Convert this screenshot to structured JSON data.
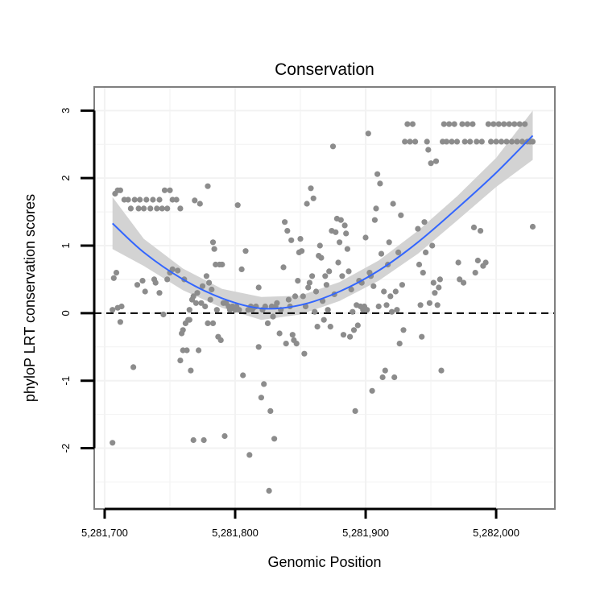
{
  "chart_data": {
    "type": "scatter",
    "title": "Conservation",
    "xlabel": "Genomic Position",
    "ylabel": "phyloP LRT conservation scores",
    "xlim": [
      5281692,
      5282045
    ],
    "ylim": [
      -2.9,
      3.35
    ],
    "x_ticks": [
      5281700,
      5281800,
      5281900,
      5282000
    ],
    "x_tick_labels": [
      "5,281,700",
      "5,281,800",
      "5,281,900",
      "5,282,000"
    ],
    "y_ticks": [
      -2,
      -1,
      0,
      1,
      2,
      3
    ],
    "y_tick_labels": [
      "-2",
      "-1",
      "0",
      "1",
      "2",
      "3"
    ],
    "reference_line": {
      "y": 0,
      "style": "dashed",
      "color": "#000000"
    },
    "grid": true,
    "colors": {
      "points": "#8c8c8c",
      "fit": "#3366ff",
      "band": "#d3d3d3",
      "grid": "#f2f2f2",
      "panel_border": "#7f7f7f"
    },
    "fit": {
      "type": "loess",
      "x": [
        5281706,
        5281730,
        5281760,
        5281790,
        5281820,
        5281850,
        5281880,
        5281910,
        5281940,
        5281970,
        5282000,
        5282028
      ],
      "y": [
        1.33,
        0.9,
        0.5,
        0.22,
        0.07,
        0.12,
        0.32,
        0.63,
        1.05,
        1.55,
        2.08,
        2.63
      ],
      "ymin": [
        0.95,
        0.7,
        0.34,
        0.08,
        -0.1,
        -0.02,
        0.18,
        0.48,
        0.88,
        1.37,
        1.87,
        2.27
      ],
      "ymax": [
        1.72,
        1.1,
        0.66,
        0.36,
        0.24,
        0.26,
        0.46,
        0.78,
        1.22,
        1.73,
        2.3,
        3.0
      ]
    },
    "series": [
      {
        "name": "phyloP",
        "points": [
          [
            5281706,
            -1.92
          ],
          [
            5281706,
            0.05
          ],
          [
            5281707,
            0.52
          ],
          [
            5281708,
            1.77
          ],
          [
            5281709,
            0.6
          ],
          [
            5281710,
            0.08
          ],
          [
            5281710,
            1.82
          ],
          [
            5281712,
            -0.13
          ],
          [
            5281712,
            1.82
          ],
          [
            5281713,
            0.1
          ],
          [
            5281715,
            1.68
          ],
          [
            5281718,
            1.68
          ],
          [
            5281720,
            1.55
          ],
          [
            5281722,
            -0.8
          ],
          [
            5281723,
            1.68
          ],
          [
            5281725,
            0.42
          ],
          [
            5281726,
            1.55
          ],
          [
            5281727,
            1.68
          ],
          [
            5281729,
            0.48
          ],
          [
            5281730,
            1.55
          ],
          [
            5281731,
            0.32
          ],
          [
            5281732,
            1.68
          ],
          [
            5281735,
            1.55
          ],
          [
            5281737,
            1.68
          ],
          [
            5281738,
            0.5
          ],
          [
            5281739,
            0.45
          ],
          [
            5281740,
            1.55
          ],
          [
            5281742,
            0.3
          ],
          [
            5281742,
            1.68
          ],
          [
            5281744,
            1.55
          ],
          [
            5281745,
            -0.02
          ],
          [
            5281746,
            1.82
          ],
          [
            5281748,
            0.5
          ],
          [
            5281748,
            1.55
          ],
          [
            5281750,
            1.82
          ],
          [
            5281750,
            0.6
          ],
          [
            5281752,
            1.68
          ],
          [
            5281752,
            0.65
          ],
          [
            5281755,
            1.68
          ],
          [
            5281756,
            0.63
          ],
          [
            5281758,
            1.55
          ],
          [
            5281758,
            -0.7
          ],
          [
            5281759,
            -0.3
          ],
          [
            5281760,
            -0.55
          ],
          [
            5281760,
            -0.25
          ],
          [
            5281761,
            0.5
          ],
          [
            5281762,
            -0.15
          ],
          [
            5281763,
            -0.55
          ],
          [
            5281764,
            -0.1
          ],
          [
            5281765,
            0.05
          ],
          [
            5281765,
            -0.1
          ],
          [
            5281766,
            -0.85
          ],
          [
            5281767,
            0.2
          ],
          [
            5281768,
            -1.88
          ],
          [
            5281768,
            0.25
          ],
          [
            5281769,
            1.67
          ],
          [
            5281770,
            0.15
          ],
          [
            5281771,
            0.3
          ],
          [
            5281772,
            -0.55
          ],
          [
            5281773,
            1.62
          ],
          [
            5281774,
            0.15
          ],
          [
            5281775,
            0.4
          ],
          [
            5281776,
            -1.88
          ],
          [
            5281777,
            0.1
          ],
          [
            5281778,
            0.55
          ],
          [
            5281779,
            1.88
          ],
          [
            5281779,
            -0.15
          ],
          [
            5281780,
            0.45
          ],
          [
            5281781,
            0.2
          ],
          [
            5281782,
            0.35
          ],
          [
            5281783,
            1.05
          ],
          [
            5281783,
            -0.15
          ],
          [
            5281784,
            0.95
          ],
          [
            5281785,
            0.72
          ],
          [
            5281786,
            0.05
          ],
          [
            5281787,
            -0.35
          ],
          [
            5281788,
            0.72
          ],
          [
            5281789,
            -0.4
          ],
          [
            5281790,
            0.72
          ],
          [
            5281791,
            0.15
          ],
          [
            5281792,
            -1.82
          ],
          [
            5281793,
            0.15
          ],
          [
            5281795,
            0.1
          ],
          [
            5281796,
            0.05
          ],
          [
            5281798,
            0.1
          ],
          [
            5281800,
            0.05
          ],
          [
            5281801,
            0.1
          ],
          [
            5281802,
            1.6
          ],
          [
            5281803,
            0.05
          ],
          [
            5281805,
            0.65
          ],
          [
            5281806,
            -0.92
          ],
          [
            5281808,
            0.92
          ],
          [
            5281810,
            0.05
          ],
          [
            5281811,
            -2.1
          ],
          [
            5281812,
            0.1
          ],
          [
            5281813,
            0.05
          ],
          [
            5281814,
            0.08
          ],
          [
            5281816,
            0.1
          ],
          [
            5281818,
            0.38
          ],
          [
            5281818,
            -0.5
          ],
          [
            5281820,
            -1.25
          ],
          [
            5281821,
            0.05
          ],
          [
            5281822,
            -1.05
          ],
          [
            5281823,
            0.1
          ],
          [
            5281825,
            -0.15
          ],
          [
            5281826,
            -2.63
          ],
          [
            5281827,
            -1.45
          ],
          [
            5281828,
            0.1
          ],
          [
            5281829,
            -0.05
          ],
          [
            5281830,
            -1.86
          ],
          [
            5281831,
            0.1
          ],
          [
            5281832,
            0.15
          ],
          [
            5281834,
            -0.3
          ],
          [
            5281835,
            0.05
          ],
          [
            5281837,
            0.68
          ],
          [
            5281838,
            1.35
          ],
          [
            5281839,
            -0.45
          ],
          [
            5281840,
            1.22
          ],
          [
            5281841,
            0.2
          ],
          [
            5281842,
            0.1
          ],
          [
            5281843,
            1.08
          ],
          [
            5281844,
            -0.32
          ],
          [
            5281845,
            -0.4
          ],
          [
            5281846,
            0.25
          ],
          [
            5281847,
            -0.45
          ],
          [
            5281848,
            0.48
          ],
          [
            5281849,
            0.9
          ],
          [
            5281850,
            1.1
          ],
          [
            5281851,
            0.92
          ],
          [
            5281852,
            0.25
          ],
          [
            5281853,
            -0.6
          ],
          [
            5281854,
            0.1
          ],
          [
            5281855,
            1.62
          ],
          [
            5281856,
            0.38
          ],
          [
            5281857,
            0.45
          ],
          [
            5281858,
            1.85
          ],
          [
            5281859,
            0.55
          ],
          [
            5281860,
            1.7
          ],
          [
            5281861,
            0.02
          ],
          [
            5281862,
            0.32
          ],
          [
            5281863,
            -0.2
          ],
          [
            5281864,
            0.85
          ],
          [
            5281865,
            1.0
          ],
          [
            5281866,
            0.82
          ],
          [
            5281867,
            0.18
          ],
          [
            5281868,
            -0.1
          ],
          [
            5281869,
            0.55
          ],
          [
            5281870,
            0.42
          ],
          [
            5281871,
            0.05
          ],
          [
            5281872,
            0.62
          ],
          [
            5281873,
            -0.2
          ],
          [
            5281874,
            1.22
          ],
          [
            5281875,
            2.47
          ],
          [
            5281876,
            0.28
          ],
          [
            5281877,
            1.2
          ],
          [
            5281878,
            1.4
          ],
          [
            5281879,
            0.75
          ],
          [
            5281880,
            1.05
          ],
          [
            5281881,
            1.38
          ],
          [
            5281882,
            0.55
          ],
          [
            5281883,
            -0.32
          ],
          [
            5281884,
            1.3
          ],
          [
            5281885,
            1.18
          ],
          [
            5281886,
            0.95
          ],
          [
            5281887,
            0.62
          ],
          [
            5281888,
            -0.35
          ],
          [
            5281889,
            0.35
          ],
          [
            5281890,
            0.02
          ],
          [
            5281891,
            -0.25
          ],
          [
            5281892,
            -1.45
          ],
          [
            5281893,
            0.12
          ],
          [
            5281894,
            -0.18
          ],
          [
            5281895,
            0.48
          ],
          [
            5281896,
            0.1
          ],
          [
            5281897,
            0.45
          ],
          [
            5281898,
            0.05
          ],
          [
            5281899,
            0.1
          ],
          [
            5281900,
            1.12
          ],
          [
            5281901,
            0.05
          ],
          [
            5281902,
            2.66
          ],
          [
            5281903,
            0.6
          ],
          [
            5281904,
            0.55
          ],
          [
            5281905,
            -1.15
          ],
          [
            5281906,
            0.4
          ],
          [
            5281907,
            1.38
          ],
          [
            5281908,
            1.55
          ],
          [
            5281909,
            2.06
          ],
          [
            5281910,
            0.1
          ],
          [
            5281911,
            1.92
          ],
          [
            5281912,
            0.88
          ],
          [
            5281913,
            -0.95
          ],
          [
            5281914,
            0.32
          ],
          [
            5281915,
            -0.85
          ],
          [
            5281916,
            0.12
          ],
          [
            5281917,
            0.72
          ],
          [
            5281918,
            1.05
          ],
          [
            5281919,
            0.25
          ],
          [
            5281920,
            0.02
          ],
          [
            5281921,
            1.62
          ],
          [
            5281922,
            -0.95
          ],
          [
            5281923,
            0.32
          ],
          [
            5281924,
            0.05
          ],
          [
            5281925,
            0.9
          ],
          [
            5281926,
            -0.45
          ],
          [
            5281927,
            1.45
          ],
          [
            5281928,
            0.42
          ],
          [
            5281929,
            -0.25
          ],
          [
            5281930,
            2.54
          ],
          [
            5281932,
            2.8
          ],
          [
            5281934,
            2.54
          ],
          [
            5281936,
            2.8
          ],
          [
            5281938,
            2.54
          ],
          [
            5281940,
            1.25
          ],
          [
            5281941,
            0.72
          ],
          [
            5281942,
            0.12
          ],
          [
            5281943,
            -0.35
          ],
          [
            5281944,
            0.6
          ],
          [
            5281945,
            1.35
          ],
          [
            5281946,
            0.9
          ],
          [
            5281947,
            2.54
          ],
          [
            5281948,
            2.42
          ],
          [
            5281949,
            0.15
          ],
          [
            5281950,
            2.22
          ],
          [
            5281951,
            1.0
          ],
          [
            5281952,
            0.45
          ],
          [
            5281953,
            0.3
          ],
          [
            5281954,
            2.25
          ],
          [
            5281955,
            0.12
          ],
          [
            5281956,
            0.38
          ],
          [
            5281957,
            0.5
          ],
          [
            5281958,
            -0.85
          ],
          [
            5281959,
            2.54
          ],
          [
            5281960,
            2.8
          ],
          [
            5281962,
            2.54
          ],
          [
            5281964,
            2.8
          ],
          [
            5281966,
            2.54
          ],
          [
            5281968,
            2.8
          ],
          [
            5281970,
            2.54
          ],
          [
            5281971,
            0.75
          ],
          [
            5281972,
            0.5
          ],
          [
            5281974,
            2.8
          ],
          [
            5281975,
            0.45
          ],
          [
            5281976,
            2.54
          ],
          [
            5281978,
            2.8
          ],
          [
            5281980,
            2.54
          ],
          [
            5281982,
            2.8
          ],
          [
            5281983,
            1.27
          ],
          [
            5281984,
            0.6
          ],
          [
            5281985,
            2.54
          ],
          [
            5281986,
            0.78
          ],
          [
            5281988,
            1.22
          ],
          [
            5281989,
            2.54
          ],
          [
            5281990,
            0.7
          ],
          [
            5281992,
            0.75
          ],
          [
            5281994,
            2.8
          ],
          [
            5281996,
            2.54
          ],
          [
            5281998,
            2.8
          ],
          [
            5282000,
            2.54
          ],
          [
            5282002,
            2.8
          ],
          [
            5282004,
            2.54
          ],
          [
            5282006,
            2.8
          ],
          [
            5282008,
            2.54
          ],
          [
            5282010,
            2.8
          ],
          [
            5282012,
            2.54
          ],
          [
            5282014,
            2.8
          ],
          [
            5282016,
            2.54
          ],
          [
            5282018,
            2.8
          ],
          [
            5282020,
            2.54
          ],
          [
            5282022,
            2.8
          ],
          [
            5282024,
            2.54
          ],
          [
            5282026,
            2.54
          ],
          [
            5282028,
            1.28
          ],
          [
            5282028,
            2.54
          ]
        ]
      }
    ]
  }
}
